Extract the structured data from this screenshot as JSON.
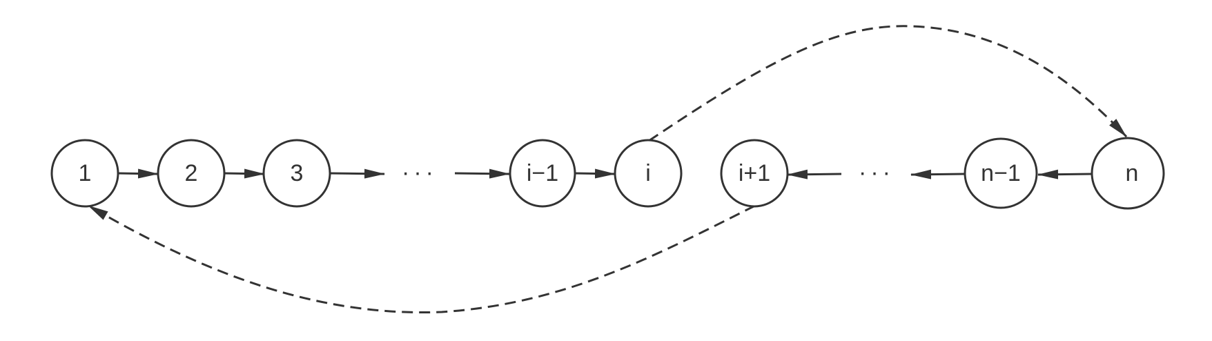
{
  "diagram": {
    "stroke_color": "#333333",
    "nodes": [
      {
        "id": "n1",
        "label": "1"
      },
      {
        "id": "n2",
        "label": "2"
      },
      {
        "id": "n3",
        "label": "3"
      },
      {
        "id": "ni-1",
        "label": "i−1"
      },
      {
        "id": "ni",
        "label": "i"
      },
      {
        "id": "ni+1",
        "label": "i+1"
      },
      {
        "id": "nn-1",
        "label": "n−1"
      },
      {
        "id": "nn",
        "label": "n"
      }
    ],
    "ellipses": [
      {
        "id": "dots-left",
        "label": "···"
      },
      {
        "id": "dots-right",
        "label": "···"
      }
    ],
    "edges": [
      {
        "from": "n1",
        "to": "n2",
        "style": "solid"
      },
      {
        "from": "n2",
        "to": "n3",
        "style": "solid"
      },
      {
        "from": "n3",
        "to": "dots-left",
        "style": "solid"
      },
      {
        "from": "dots-left",
        "to": "ni-1",
        "style": "solid"
      },
      {
        "from": "ni-1",
        "to": "ni",
        "style": "solid"
      },
      {
        "from": "ni",
        "to": "nn",
        "style": "dashed"
      },
      {
        "from": "nn",
        "to": "nn-1",
        "style": "solid"
      },
      {
        "from": "nn-1",
        "to": "dots-right",
        "style": "solid"
      },
      {
        "from": "dots-right",
        "to": "ni+1",
        "style": "solid"
      },
      {
        "from": "ni+1",
        "to": "n1",
        "style": "dashed"
      }
    ]
  }
}
